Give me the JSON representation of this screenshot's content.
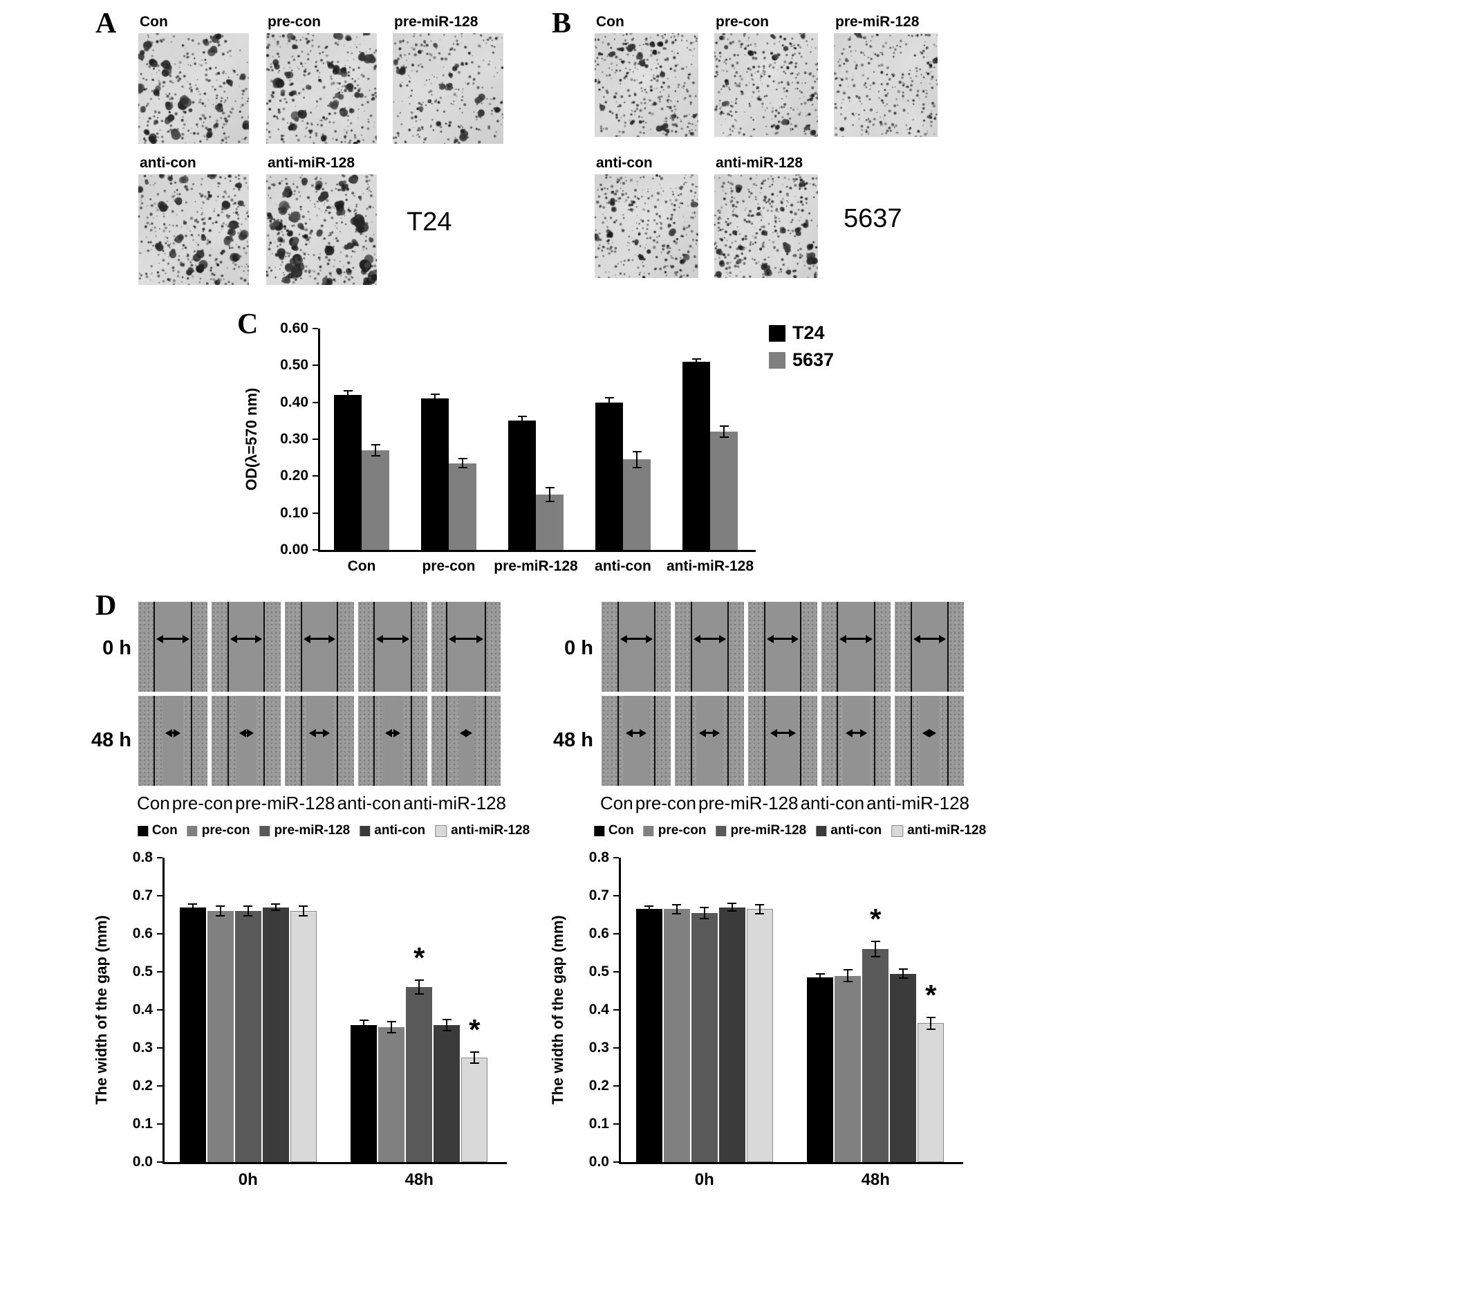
{
  "panelA": {
    "label": "A",
    "cell_line": "T24",
    "image_labels": [
      "Con",
      "pre-con",
      "pre-miR-128",
      "anti-con",
      "anti-miR-128"
    ]
  },
  "panelB": {
    "label": "B",
    "cell_line": "5637",
    "image_labels": [
      "Con",
      "pre-con",
      "pre-miR-128",
      "anti-con",
      "anti-miR-128"
    ]
  },
  "panelC": {
    "label": "C"
  },
  "panelD": {
    "label": "D",
    "left": {
      "row_labels": [
        "0 h",
        "48 h"
      ],
      "column_labels": [
        "Con",
        "pre-con",
        "pre-miR-128",
        "anti-con",
        "anti-miR-128"
      ],
      "gap_fractions": {
        "h0": [
          0.56,
          0.54,
          0.54,
          0.56,
          0.58
        ],
        "h48": [
          0.3,
          0.29,
          0.38,
          0.3,
          0.23
        ]
      }
    },
    "right": {
      "row_labels": [
        "0 h",
        "48 h"
      ],
      "column_labels": [
        "Con",
        "pre-con",
        "pre-miR-128",
        "anti-con",
        "anti-miR-128"
      ],
      "gap_fractions": {
        "h0": [
          0.55,
          0.55,
          0.54,
          0.56,
          0.55
        ],
        "h48": [
          0.38,
          0.38,
          0.45,
          0.39,
          0.28
        ]
      }
    }
  },
  "chart_data": [
    {
      "id": "panelC-chart",
      "type": "bar",
      "title": "",
      "ylabel": "OD(λ=570 nm)",
      "ylim": [
        0,
        0.6
      ],
      "yticks": [
        "0.00",
        "0.10",
        "0.20",
        "0.30",
        "0.40",
        "0.50",
        "0.60"
      ],
      "categories": [
        "Con",
        "pre-con",
        "pre-miR-128",
        "anti-con",
        "anti-miR-128"
      ],
      "legend_position": "right",
      "grid": false,
      "series": [
        {
          "name": "T24",
          "color": "#000000",
          "values": [
            0.42,
            0.41,
            0.35,
            0.4,
            0.51
          ],
          "errors": [
            0.012,
            0.012,
            0.012,
            0.012,
            0.008
          ]
        },
        {
          "name": "5637",
          "color": "#7f7f7f",
          "values": [
            0.27,
            0.235,
            0.15,
            0.245,
            0.32
          ],
          "errors": [
            0.015,
            0.012,
            0.018,
            0.022,
            0.015
          ]
        }
      ]
    },
    {
      "id": "panelD-left-chart",
      "type": "bar",
      "title": "",
      "ylabel": "The width of the gap (mm)",
      "ylim": [
        0,
        0.8
      ],
      "yticks": [
        "0.0",
        "0.1",
        "0.2",
        "0.3",
        "0.4",
        "0.5",
        "0.6",
        "0.7",
        "0.8"
      ],
      "categories": [
        "0h",
        "48h"
      ],
      "legend_position": "top",
      "grid": false,
      "series": [
        {
          "name": "Con",
          "color": "#000000",
          "values": [
            0.67,
            0.36
          ],
          "errors": [
            0.008,
            0.012
          ]
        },
        {
          "name": "pre-con",
          "color": "#808080",
          "values": [
            0.66,
            0.355
          ],
          "errors": [
            0.012,
            0.015
          ]
        },
        {
          "name": "pre-miR-128",
          "color": "#595959",
          "values": [
            0.66,
            0.46
          ],
          "errors": [
            0.012,
            0.018
          ],
          "annotations": [
            "",
            "*"
          ]
        },
        {
          "name": "anti-con",
          "color": "#3b3b3b",
          "values": [
            0.67,
            0.36
          ],
          "errors": [
            0.008,
            0.015
          ]
        },
        {
          "name": "anti-miR-128",
          "color": "#d9d9d9",
          "border": "#8a8a8a",
          "values": [
            0.66,
            0.275
          ],
          "errors": [
            0.012,
            0.015
          ],
          "annotations": [
            "",
            "*"
          ]
        }
      ]
    },
    {
      "id": "panelD-right-chart",
      "type": "bar",
      "title": "",
      "ylabel": "The width of the gap (mm)",
      "ylim": [
        0,
        0.8
      ],
      "yticks": [
        "0.0",
        "0.1",
        "0.2",
        "0.3",
        "0.4",
        "0.5",
        "0.6",
        "0.7",
        "0.8"
      ],
      "categories": [
        "0h",
        "48h"
      ],
      "legend_position": "top",
      "grid": false,
      "series": [
        {
          "name": "Con",
          "color": "#000000",
          "values": [
            0.665,
            0.485
          ],
          "errors": [
            0.008,
            0.01
          ]
        },
        {
          "name": "pre-con",
          "color": "#808080",
          "values": [
            0.665,
            0.49
          ],
          "errors": [
            0.012,
            0.015
          ]
        },
        {
          "name": "pre-miR-128",
          "color": "#595959",
          "values": [
            0.655,
            0.56
          ],
          "errors": [
            0.015,
            0.02
          ],
          "annotations": [
            "",
            "*"
          ]
        },
        {
          "name": "anti-con",
          "color": "#3b3b3b",
          "values": [
            0.67,
            0.495
          ],
          "errors": [
            0.01,
            0.012
          ]
        },
        {
          "name": "anti-miR-128",
          "color": "#d9d9d9",
          "border": "#8a8a8a",
          "values": [
            0.665,
            0.365
          ],
          "errors": [
            0.012,
            0.015
          ],
          "annotations": [
            "",
            "*"
          ]
        }
      ]
    }
  ]
}
